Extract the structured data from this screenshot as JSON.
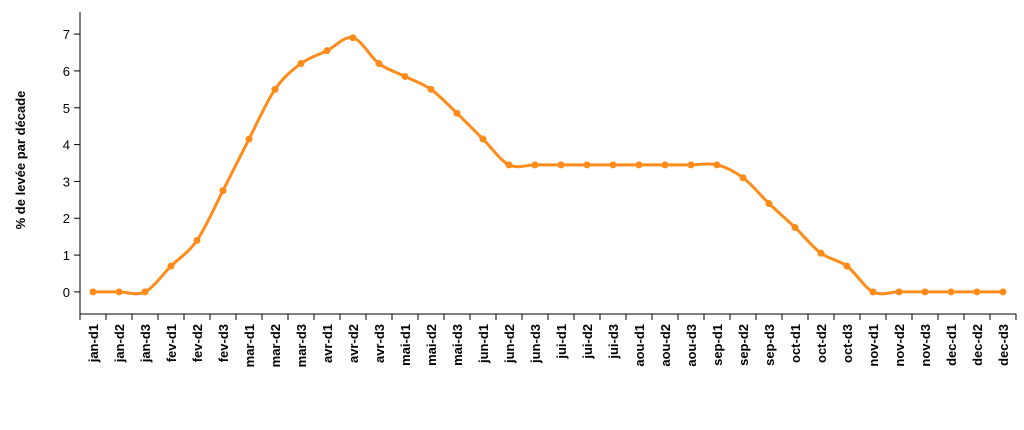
{
  "chart_data": {
    "type": "line",
    "title": "",
    "xlabel": "",
    "ylabel": "% de levée par décade",
    "ylim": [
      -0.6,
      7.6
    ],
    "yticks": [
      0,
      1,
      2,
      3,
      4,
      5,
      6,
      7
    ],
    "grid": false,
    "legend": "none",
    "color": "#ff8c1a",
    "categories": [
      "jan-d1",
      "jan-d2",
      "jan-d3",
      "fev-d1",
      "fev-d2",
      "fev-d3",
      "mar-d1",
      "mar-d2",
      "mar-d3",
      "avr-d1",
      "avr-d2",
      "avr-d3",
      "mai-d1",
      "mai-d2",
      "mai-d3",
      "jun-d1",
      "jun-d2",
      "jun-d3",
      "jui-d1",
      "jui-d2",
      "jui-d3",
      "aou-d1",
      "aou-d2",
      "aou-d3",
      "sep-d1",
      "sep-d2",
      "sep-d3",
      "oct-d1",
      "oct-d2",
      "oct-d3",
      "nov-d1",
      "nov-d2",
      "nov-d3",
      "dec-d1",
      "dec-d2",
      "dec-d3"
    ],
    "values": [
      0,
      0,
      0,
      0.7,
      1.4,
      2.75,
      4.15,
      5.5,
      6.2,
      6.55,
      6.9,
      6.2,
      5.85,
      5.5,
      4.85,
      4.15,
      3.45,
      3.45,
      3.45,
      3.45,
      3.45,
      3.45,
      3.45,
      3.45,
      3.45,
      3.1,
      2.4,
      1.75,
      1.05,
      0.7,
      0,
      0,
      0,
      0,
      0,
      0
    ]
  }
}
